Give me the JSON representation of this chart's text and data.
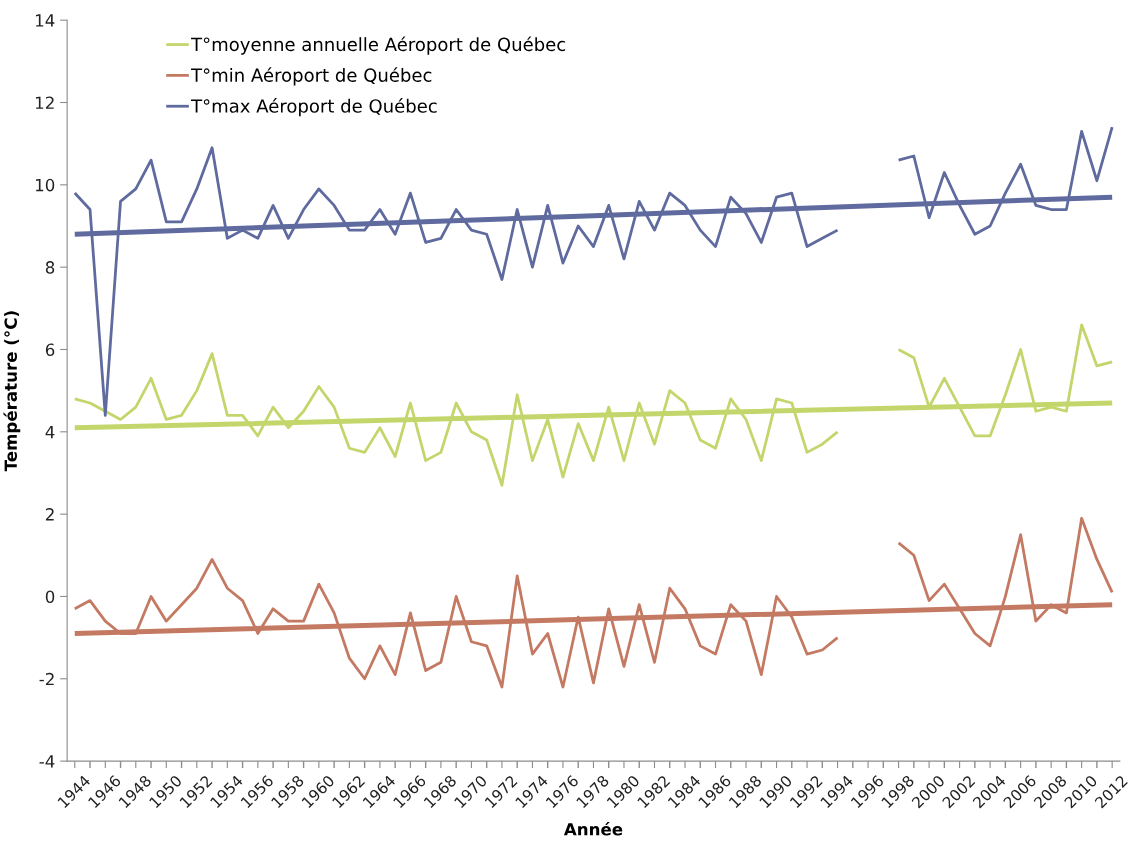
{
  "chart_data": {
    "type": "line",
    "xlabel": "Année",
    "ylabel": "Température (°C)",
    "x": [
      1944,
      1945,
      1946,
      1947,
      1948,
      1949,
      1950,
      1951,
      1952,
      1953,
      1954,
      1955,
      1956,
      1957,
      1958,
      1959,
      1960,
      1961,
      1962,
      1963,
      1964,
      1965,
      1966,
      1967,
      1968,
      1969,
      1970,
      1971,
      1972,
      1973,
      1974,
      1975,
      1976,
      1977,
      1978,
      1979,
      1980,
      1981,
      1982,
      1983,
      1984,
      1985,
      1986,
      1987,
      1988,
      1989,
      1990,
      1991,
      1992,
      1993,
      1994,
      1995,
      1996,
      1997,
      1998,
      1999,
      2000,
      2001,
      2002,
      2003,
      2004,
      2005,
      2006,
      2007,
      2008,
      2009,
      2010,
      2011,
      2012
    ],
    "series": [
      {
        "name": "T°moyenne annuelle Aéroport de Québec",
        "color": "#c3d66c",
        "values": [
          4.8,
          4.7,
          4.5,
          4.3,
          4.6,
          5.3,
          4.3,
          4.4,
          5.0,
          5.9,
          4.4,
          4.4,
          3.9,
          4.6,
          4.1,
          4.5,
          5.1,
          4.6,
          3.6,
          3.5,
          4.1,
          3.4,
          4.7,
          3.3,
          3.5,
          4.7,
          4.0,
          3.8,
          2.7,
          4.9,
          3.3,
          4.3,
          2.9,
          4.2,
          3.3,
          4.6,
          3.3,
          4.7,
          3.7,
          5.0,
          4.7,
          3.8,
          3.6,
          4.8,
          4.3,
          3.3,
          4.8,
          4.7,
          3.5,
          3.7,
          4.0,
          null,
          null,
          null,
          6.0,
          5.8,
          4.6,
          5.3,
          4.6,
          3.9,
          3.9,
          4.9,
          6.0,
          4.5,
          4.6,
          4.5,
          6.6,
          5.6,
          5.7
        ]
      },
      {
        "name": "T°min Aéroport de Québec",
        "color": "#c47962",
        "values": [
          -0.3,
          -0.1,
          -0.6,
          -0.9,
          -0.9,
          0.0,
          -0.6,
          -0.2,
          0.2,
          0.9,
          0.2,
          -0.1,
          -0.9,
          -0.3,
          -0.6,
          -0.6,
          0.3,
          -0.4,
          -1.5,
          -2.0,
          -1.2,
          -1.9,
          -0.4,
          -1.8,
          -1.6,
          0.0,
          -1.1,
          -1.2,
          -2.2,
          0.5,
          -1.4,
          -0.9,
          -2.2,
          -0.5,
          -2.1,
          -0.3,
          -1.7,
          -0.2,
          -1.6,
          0.2,
          -0.3,
          -1.2,
          -1.4,
          -0.2,
          -0.6,
          -1.9,
          0.0,
          -0.5,
          -1.4,
          -1.3,
          -1.0,
          null,
          null,
          null,
          1.3,
          1.0,
          -0.1,
          0.3,
          -0.3,
          -0.9,
          -1.2,
          0.0,
          1.5,
          -0.6,
          -0.2,
          -0.4,
          1.9,
          0.9,
          0.1
        ]
      },
      {
        "name": "T°max Aéroport de Québec",
        "color": "#5f6a9e",
        "values": [
          9.8,
          9.4,
          4.4,
          9.6,
          9.9,
          10.6,
          9.1,
          9.1,
          9.9,
          10.9,
          8.7,
          8.9,
          8.7,
          9.5,
          8.7,
          9.4,
          9.9,
          9.5,
          8.9,
          8.9,
          9.4,
          8.8,
          9.8,
          8.6,
          8.7,
          9.4,
          8.9,
          8.8,
          7.7,
          9.4,
          8.0,
          9.5,
          8.1,
          9.0,
          8.5,
          9.5,
          8.2,
          9.6,
          8.9,
          9.8,
          9.5,
          8.9,
          8.5,
          9.7,
          9.3,
          8.6,
          9.7,
          9.8,
          8.5,
          8.7,
          8.9,
          null,
          null,
          null,
          10.6,
          10.7,
          9.2,
          10.3,
          9.5,
          8.8,
          9.0,
          9.8,
          10.5,
          9.5,
          9.4,
          9.4,
          11.3,
          10.1,
          11.4
        ]
      },
      {
        "type": "line",
        "color": "#c3d66c",
        "x": [
          1944,
          1978,
          2012
        ],
        "values": [
          4.1,
          4.4,
          4.7
        ]
      },
      {
        "type": "line",
        "color": "#c47962",
        "x": [
          1944,
          1978,
          2012
        ],
        "values": [
          -0.9,
          -0.55,
          -0.2
        ]
      },
      {
        "type": "line",
        "color": "#5f6a9e",
        "x": [
          1944,
          1978,
          2012
        ],
        "values": [
          8.8,
          9.25,
          9.7
        ]
      }
    ],
    "xlim": [
      1943.5,
      2012.5
    ],
    "xticks": [
      1944,
      1946,
      1948,
      1950,
      1952,
      1954,
      1956,
      1958,
      1960,
      1962,
      1964,
      1966,
      1968,
      1970,
      1972,
      1974,
      1976,
      1978,
      1980,
      1982,
      1984,
      1986,
      1988,
      1990,
      1992,
      1994,
      1996,
      1998,
      2000,
      2002,
      2004,
      2006,
      2008,
      2010,
      2012
    ],
    "ylim": [
      -4,
      14
    ],
    "yticks": [
      -4,
      -2,
      0,
      2,
      4,
      6,
      8,
      10,
      12,
      14
    ],
    "legend": "top left",
    "grid": false,
    "line_style": "solid"
  }
}
